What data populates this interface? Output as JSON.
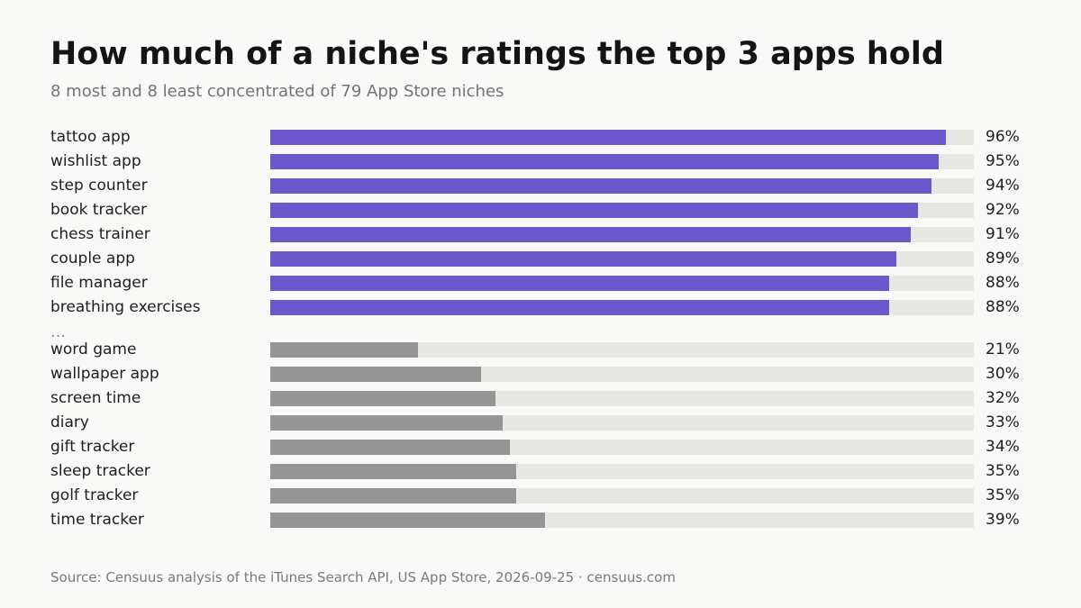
{
  "chart_data": {
    "type": "bar",
    "orientation": "horizontal",
    "title": "How much of a niche's ratings the top 3 apps hold",
    "subtitle": "8 most and 8 least concentrated of 79 App Store niches",
    "xlim": [
      0,
      100
    ],
    "unit": "%",
    "groups": [
      {
        "color": "#6c57cc",
        "rows": [
          {
            "label": "tattoo app",
            "value": 96,
            "value_label": "96%"
          },
          {
            "label": "wishlist app",
            "value": 95,
            "value_label": "95%"
          },
          {
            "label": "step counter",
            "value": 94,
            "value_label": "94%"
          },
          {
            "label": "book tracker",
            "value": 92,
            "value_label": "92%"
          },
          {
            "label": "chess trainer",
            "value": 91,
            "value_label": "91%"
          },
          {
            "label": "couple app",
            "value": 89,
            "value_label": "89%"
          },
          {
            "label": "file manager",
            "value": 88,
            "value_label": "88%"
          },
          {
            "label": "breathing exercises",
            "value": 88,
            "value_label": "88%"
          }
        ]
      },
      {
        "color": "#959595",
        "rows": [
          {
            "label": "word game",
            "value": 21,
            "value_label": "21%"
          },
          {
            "label": "wallpaper app",
            "value": 30,
            "value_label": "30%"
          },
          {
            "label": "screen time",
            "value": 32,
            "value_label": "32%"
          },
          {
            "label": "diary",
            "value": 33,
            "value_label": "33%"
          },
          {
            "label": "gift tracker",
            "value": 34,
            "value_label": "34%"
          },
          {
            "label": "sleep tracker",
            "value": 35,
            "value_label": "35%"
          },
          {
            "label": "golf tracker",
            "value": 35,
            "value_label": "35%"
          },
          {
            "label": "time tracker",
            "value": 39,
            "value_label": "39%"
          }
        ]
      }
    ],
    "separator": "…",
    "track_color": "#e7e7e4"
  },
  "footer": {
    "source": "Source: Censuus analysis of the iTunes Search API, US App Store, 2026-09-25 · censuus.com"
  }
}
